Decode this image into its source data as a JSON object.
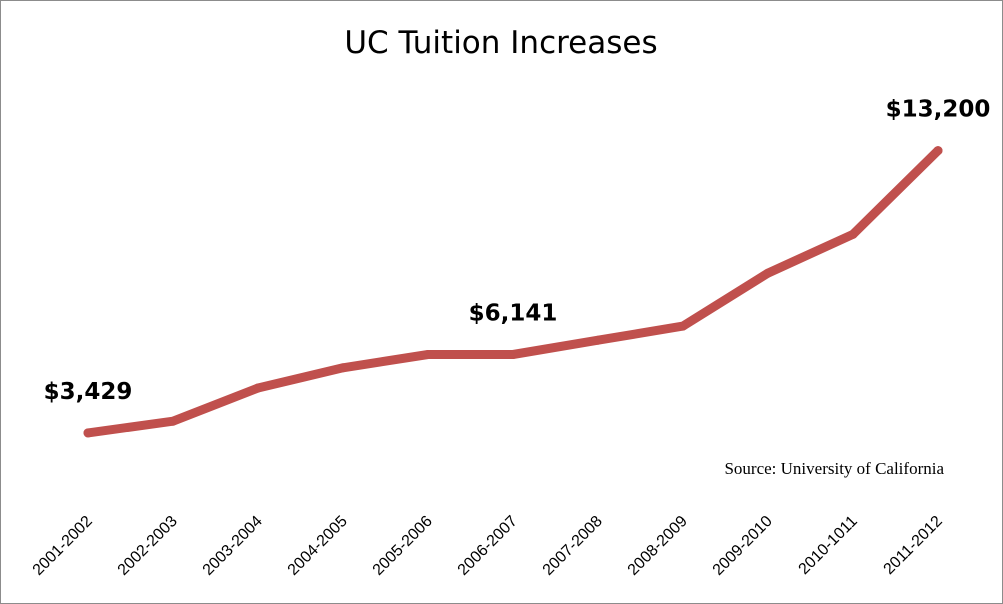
{
  "chart_data": {
    "type": "line",
    "title": "UC Tuition Increases",
    "xlabel": "",
    "ylabel": "",
    "categories": [
      "2001-2002",
      "2002-2003",
      "2003-2004",
      "2004-2005",
      "2005-2006",
      "2006-2007",
      "2007-2008",
      "2008-2009",
      "2009-2010",
      "2010-1011",
      "2011-2012"
    ],
    "series": [
      {
        "values": [
          3429,
          3834,
          4984,
          5684,
          6141,
          6141,
          6636,
          7126,
          8958,
          10302,
          13200
        ],
        "color": "#c0504d"
      }
    ],
    "data_labels": [
      {
        "index": 0,
        "text": "$3,429"
      },
      {
        "index": 5,
        "text": "$6,141"
      },
      {
        "index": 10,
        "text": "$13,200"
      }
    ],
    "ylim": [
      0,
      14500
    ],
    "grid": false,
    "legend": "none",
    "annotation": "Source: University of California"
  }
}
